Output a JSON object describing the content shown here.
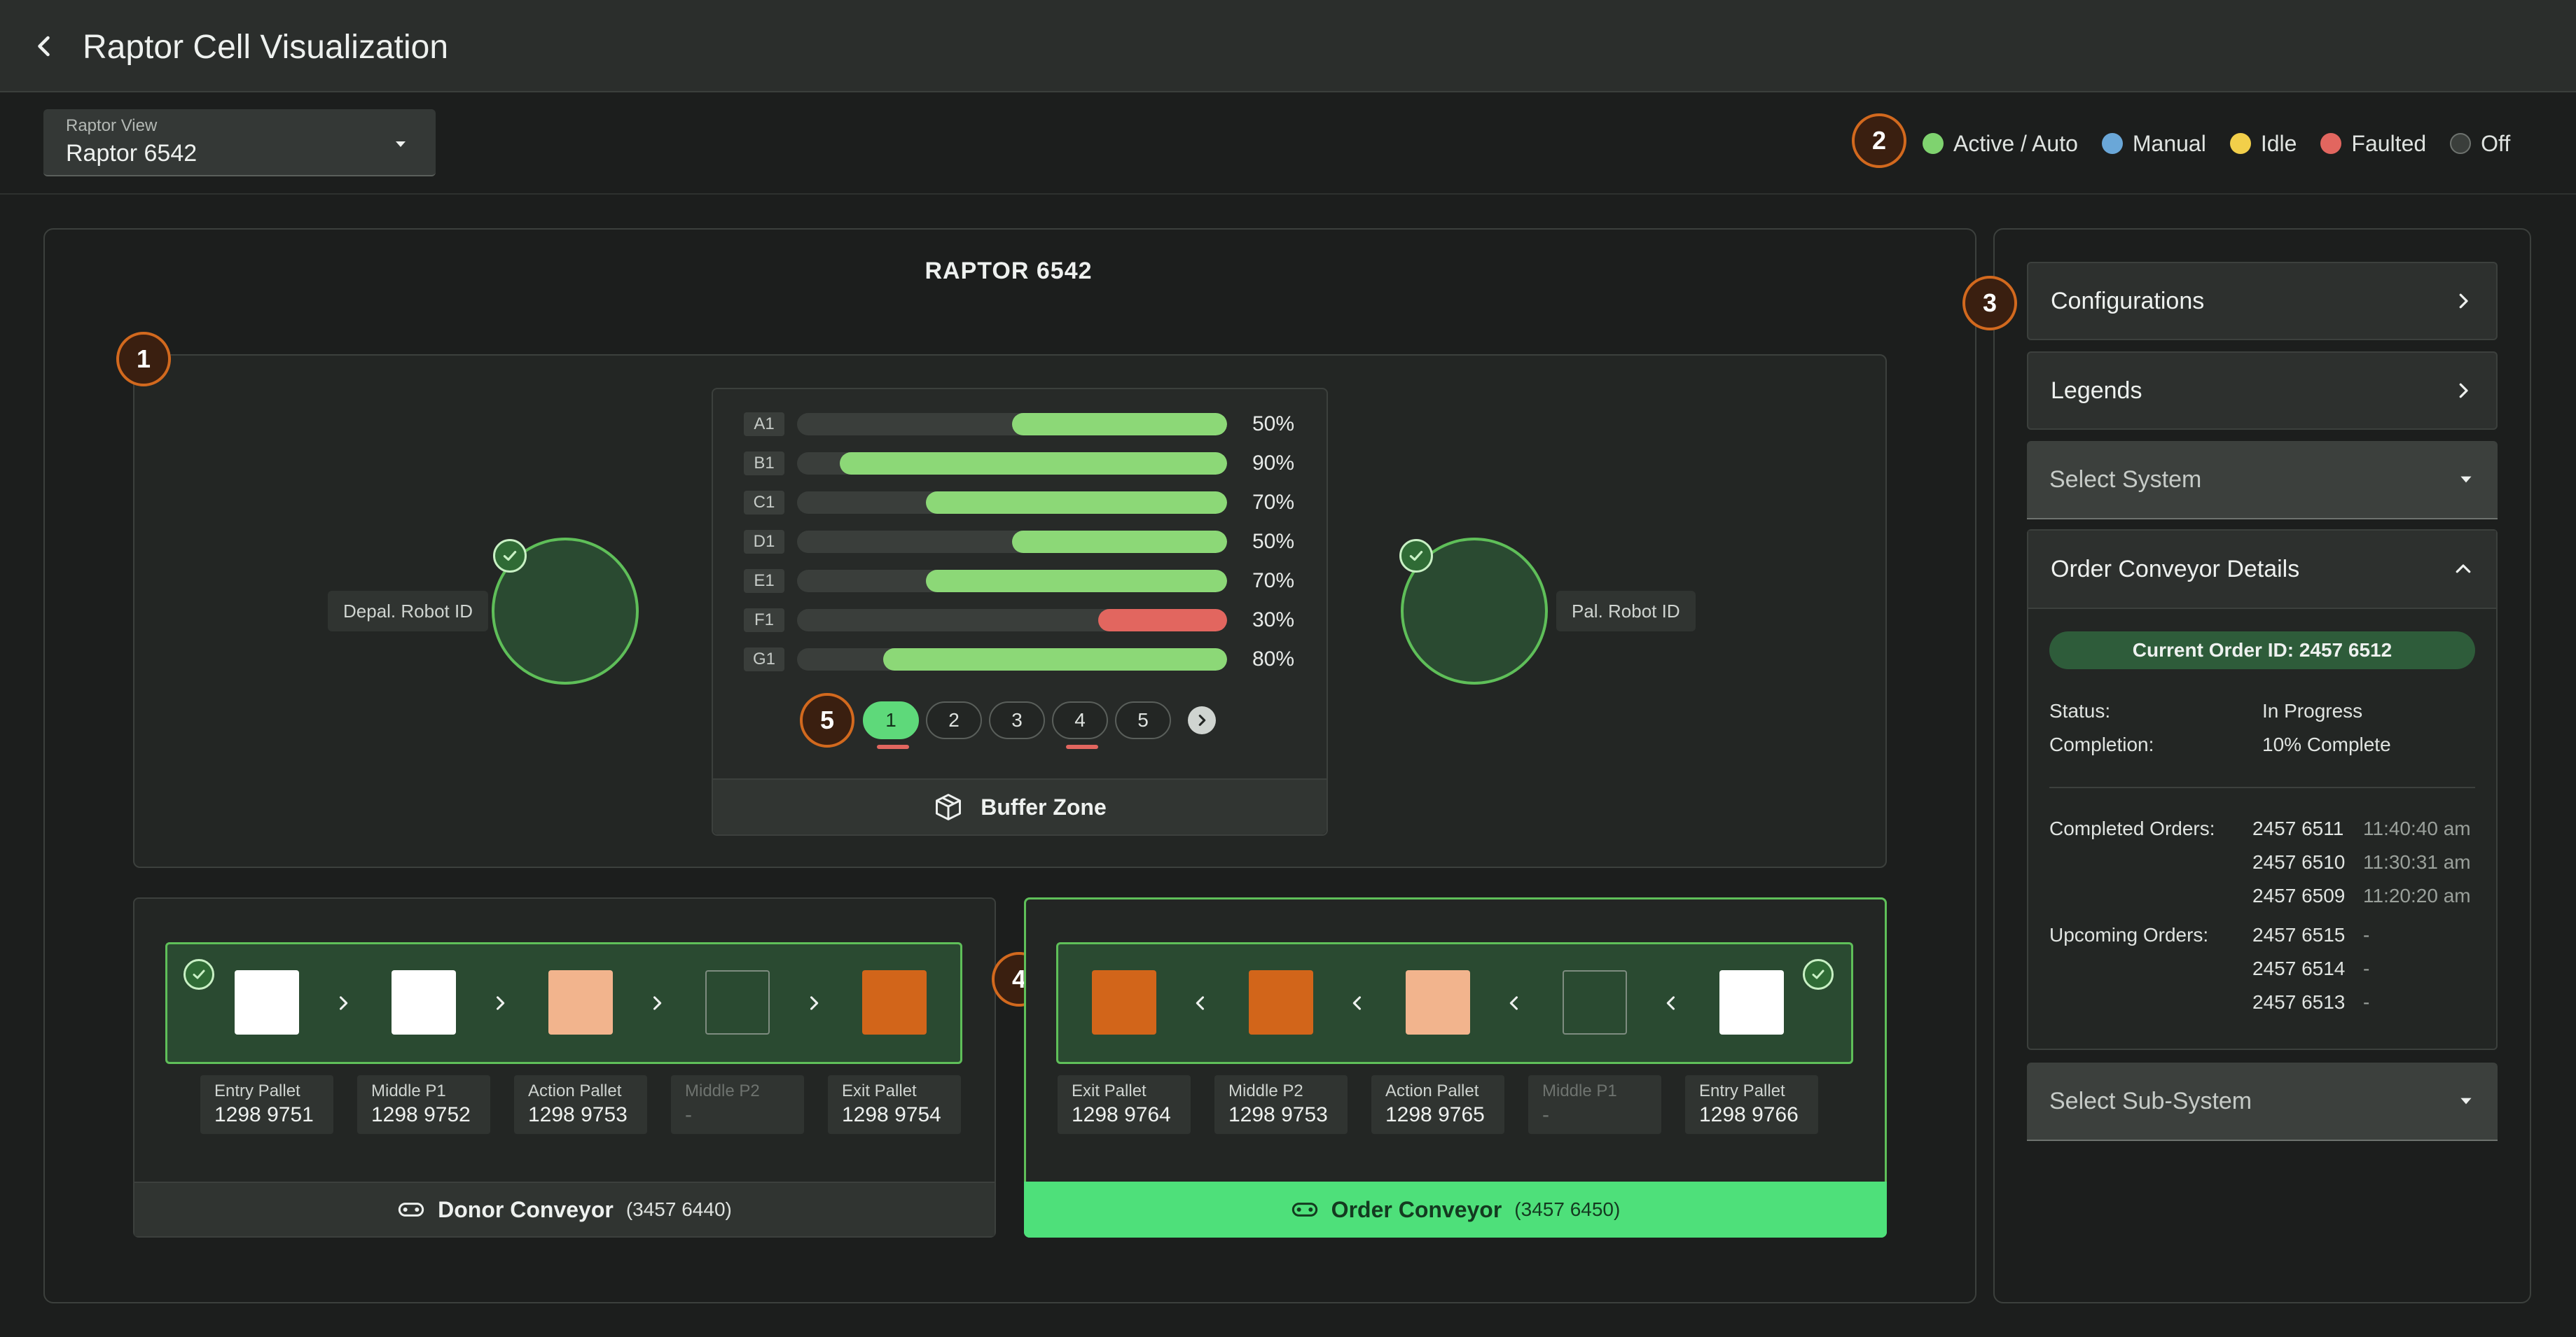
{
  "header": {
    "title": "Raptor Cell Visualization"
  },
  "view_select": {
    "label": "Raptor View",
    "value": "Raptor 6542"
  },
  "markers": [
    "1",
    "2",
    "3",
    "4",
    "5"
  ],
  "legend": [
    {
      "label": "Active / Auto",
      "color": "#7fd36f"
    },
    {
      "label": "Manual",
      "color": "#6aa7d8"
    },
    {
      "label": "Idle",
      "color": "#f2cf4a"
    },
    {
      "label": "Faulted",
      "color": "#e2665f"
    },
    {
      "label": "Off",
      "color": "#3a3e3b"
    }
  ],
  "main": {
    "title": "RAPTOR 6542",
    "depal_robot": {
      "label": "Depal. Robot ID"
    },
    "pal_robot": {
      "label": "Pal. Robot ID"
    },
    "buffer": {
      "rows": [
        {
          "id": "A1",
          "percent": 50,
          "pct_label": "50%",
          "status": "active"
        },
        {
          "id": "B1",
          "percent": 90,
          "pct_label": "90%",
          "status": "active"
        },
        {
          "id": "C1",
          "percent": 70,
          "pct_label": "70%",
          "status": "active"
        },
        {
          "id": "D1",
          "percent": 50,
          "pct_label": "50%",
          "status": "active"
        },
        {
          "id": "E1",
          "percent": 70,
          "pct_label": "70%",
          "status": "active"
        },
        {
          "id": "F1",
          "percent": 30,
          "pct_label": "30%",
          "status": "faulted"
        },
        {
          "id": "G1",
          "percent": 80,
          "pct_label": "80%",
          "status": "active"
        }
      ],
      "pages": [
        "1",
        "2",
        "3",
        "4",
        "5"
      ],
      "active_page": "1",
      "faulted_pages": [
        "1",
        "4"
      ],
      "footer_label": "Buffer Zone"
    },
    "donor_conveyor": {
      "name": "Donor Conveyor",
      "id": "(3457 6440)",
      "pallet_colors": [
        "#ffffff",
        "#ffffff",
        "#f2b48d",
        "empty",
        "#d2651a"
      ],
      "captions": [
        {
          "label": "Entry Pallet",
          "value": "1298 9751"
        },
        {
          "label": "Middle P1",
          "value": "1298 9752"
        },
        {
          "label": "Action Pallet",
          "value": "1298 9753"
        },
        {
          "label": "Middle P2",
          "value": "-"
        },
        {
          "label": "Exit Pallet",
          "value": "1298 9754"
        }
      ]
    },
    "order_conveyor": {
      "name": "Order Conveyor",
      "id": "(3457 6450)",
      "pallet_colors": [
        "#d2651a",
        "#d2651a",
        "#f2b48d",
        "empty",
        "#ffffff"
      ],
      "captions": [
        {
          "label": "Exit Pallet",
          "value": "1298 9764"
        },
        {
          "label": "Middle P2",
          "value": "1298 9753"
        },
        {
          "label": "Action Pallet",
          "value": "1298 9765"
        },
        {
          "label": "Middle P1",
          "value": "-"
        },
        {
          "label": "Entry Pallet",
          "value": "1298 9766"
        }
      ]
    }
  },
  "sidebar": {
    "configurations": "Configurations",
    "legends": "Legends",
    "select_system": "Select System",
    "details_title": "Order Conveyor Details",
    "current_order": "Current Order ID: 2457 6512",
    "status_label": "Status:",
    "status_value": "In Progress",
    "completion_label": "Completion:",
    "completion_value": "10% Complete",
    "completed_label": "Completed Orders:",
    "completed_orders": [
      {
        "id": "2457 6511",
        "time": "11:40:40 am"
      },
      {
        "id": "2457 6510",
        "time": "11:30:31 am"
      },
      {
        "id": "2457 6509",
        "time": "11:20:20 am"
      }
    ],
    "upcoming_label": "Upcoming Orders:",
    "upcoming_orders": [
      {
        "id": "2457 6515",
        "time": "-"
      },
      {
        "id": "2457 6514",
        "time": "-"
      },
      {
        "id": "2457 6513",
        "time": "-"
      }
    ],
    "select_subsystem": "Select Sub-System"
  }
}
